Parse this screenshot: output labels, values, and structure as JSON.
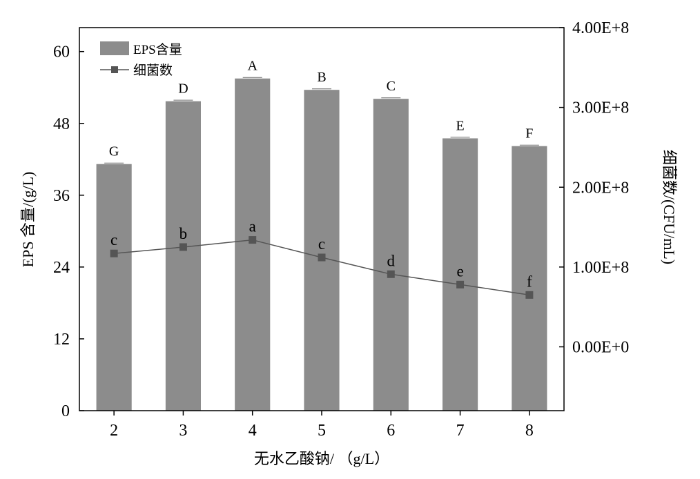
{
  "chart_data": {
    "type": "bar",
    "categories": [
      "2",
      "3",
      "4",
      "5",
      "6",
      "7",
      "8"
    ],
    "xlabel": "无水乙酸钠/ （g/L）",
    "ylabel": "EPS 含量/(g/L)",
    "y2label": "细菌数/(CFU/mL)",
    "ylim": [
      0,
      64
    ],
    "yticks": [
      "0",
      "12",
      "24",
      "36",
      "48",
      "60"
    ],
    "y2lim": [
      -80000000,
      400000000
    ],
    "y2ticks": [
      "0.00E+0",
      "1.00E+8",
      "2.00E+8",
      "3.00E+8",
      "4.00E+8"
    ],
    "legend_position": "top-left",
    "series": [
      {
        "name": "EPS含量",
        "kind": "bar",
        "color": "#8c8c8c",
        "axis": "left",
        "values": [
          41.2,
          51.7,
          55.5,
          53.6,
          52.1,
          45.5,
          44.2
        ],
        "labels": [
          "G",
          "D",
          "A",
          "B",
          "C",
          "E",
          "F"
        ]
      },
      {
        "name": "细菌数",
        "kind": "line",
        "color": "#555555",
        "axis": "right",
        "values": [
          117000000,
          125000000,
          134000000,
          112000000,
          91000000,
          78000000,
          65000000
        ],
        "labels": [
          "c",
          "b",
          "a",
          "c",
          "d",
          "e",
          "f"
        ]
      }
    ]
  }
}
